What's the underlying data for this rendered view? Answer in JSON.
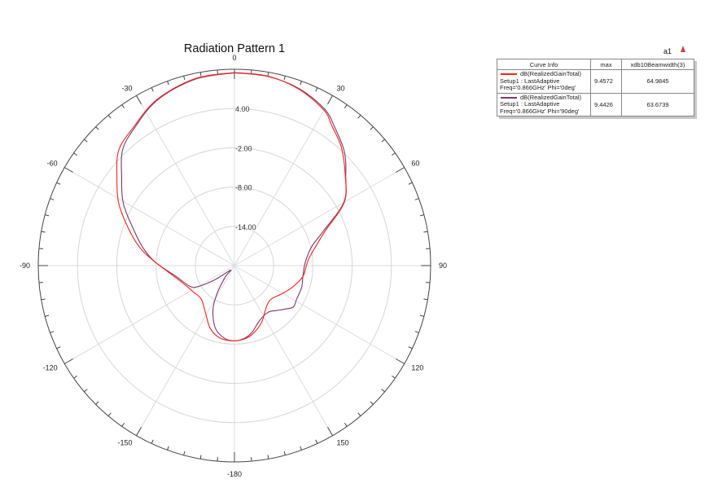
{
  "chart": {
    "title": "Radiation Pattern 1",
    "marker_name": "a1",
    "marker_icon": "marker-triangle-icon"
  },
  "legend": {
    "headers": [
      "Curve Info",
      "max",
      "xdb10Beamwidth(3)"
    ],
    "rows": [
      {
        "color": "#ff2020",
        "line1": "dB(RealizedGainTotal)",
        "line2": "Setup1 : LastAdaptive",
        "line3": "Freq='0.866GHz' Phi='0deg'",
        "max": "9.4572",
        "beamwidth": "64.9845"
      },
      {
        "color": "#7a3a6a",
        "line1": "dB(RealizedGainTotal)",
        "line2": "Setup1 : LastAdaptive",
        "line3": "Freq='0.866GHz' Phi='90deg'",
        "max": "9.4426",
        "beamwidth": "63.6739"
      }
    ]
  },
  "chart_data": {
    "type": "polar-line",
    "title": "Radiation Pattern 1",
    "r_axis": {
      "min": -20,
      "max": 10,
      "unit": "dB",
      "ring_labels": [
        "4.00",
        "-2.00",
        "-8.00",
        "-14.00"
      ],
      "ring_values": [
        4,
        -2,
        -8,
        -14
      ]
    },
    "theta_axis": {
      "labels": [
        "0",
        "30",
        "60",
        "90",
        "120",
        "150",
        "-180",
        "-150",
        "-120",
        "-90",
        "-60",
        "-30"
      ],
      "label_angles": [
        0,
        30,
        60,
        90,
        120,
        150,
        180,
        -150,
        -120,
        -90,
        -60,
        -30
      ],
      "major_step": 30,
      "minor_step": 5,
      "direction": "clockwise",
      "zero": "top"
    },
    "legend_position": "top-right",
    "series": [
      {
        "name": "dB(RealizedGainTotal) Setup1 : LastAdaptive Freq='0.866GHz' Phi='0deg'",
        "color": "#ff2020",
        "max": 9.4572,
        "beamwidth": 64.9845,
        "points": [
          [
            0,
            9.5
          ],
          [
            10,
            9.4
          ],
          [
            20,
            8.7
          ],
          [
            30,
            7.4
          ],
          [
            35,
            6.0
          ],
          [
            42,
            4.4
          ],
          [
            51,
            1.8
          ],
          [
            60,
            -0.6
          ],
          [
            69,
            -5.1
          ],
          [
            74,
            -6.6
          ],
          [
            84,
            -8.5
          ],
          [
            90,
            -9.0
          ],
          [
            99,
            -9.4
          ],
          [
            110,
            -10.5
          ],
          [
            120,
            -11.5
          ],
          [
            132,
            -12.4
          ],
          [
            140,
            -12.2
          ],
          [
            147,
            -11.5
          ],
          [
            155,
            -10.3
          ],
          [
            165,
            -9.2
          ],
          [
            172,
            -8.7
          ],
          [
            180,
            -8.5
          ],
          [
            -169,
            -8.7
          ],
          [
            -159,
            -9.7
          ],
          [
            -148,
            -11.6
          ],
          [
            -135,
            -12.8
          ],
          [
            -122,
            -12.5
          ],
          [
            -114,
            -12.1
          ],
          [
            -102,
            -10.9
          ],
          [
            -88,
            -8.0
          ],
          [
            -80,
            -5.5
          ],
          [
            -72,
            -3.2
          ],
          [
            -62,
            0.0
          ],
          [
            -53,
            2.5
          ],
          [
            -45,
            5.0
          ],
          [
            -36,
            6.2
          ],
          [
            -25,
            8.0
          ],
          [
            -12,
            9.2
          ],
          [
            0,
            9.5
          ]
        ]
      },
      {
        "name": "dB(RealizedGainTotal) Setup1 : LastAdaptive Freq='0.866GHz' Phi='90deg'",
        "color": "#7a3a6a",
        "max": 9.4426,
        "beamwidth": 63.6739,
        "points": [
          [
            0,
            9.45
          ],
          [
            10,
            9.35
          ],
          [
            20,
            8.8
          ],
          [
            30,
            7.6
          ],
          [
            36,
            6.1
          ],
          [
            44,
            4.2
          ],
          [
            51,
            1.9
          ],
          [
            60,
            -0.7
          ],
          [
            69,
            -5.5
          ],
          [
            76,
            -7.8
          ],
          [
            84,
            -8.9
          ],
          [
            90,
            -9.3
          ],
          [
            99,
            -9.4
          ],
          [
            108,
            -9.2
          ],
          [
            118,
            -9.2
          ],
          [
            125,
            -9.0
          ],
          [
            130,
            -9.7
          ],
          [
            137,
            -10.6
          ],
          [
            144,
            -11.2
          ],
          [
            155,
            -10.8
          ],
          [
            165,
            -9.5
          ],
          [
            172,
            -8.8
          ],
          [
            180,
            -8.5
          ],
          [
            -172,
            -8.8
          ],
          [
            -163,
            -10.0
          ],
          [
            -154,
            -12.5
          ],
          [
            -148,
            -15.0
          ],
          [
            -141,
            -17.8
          ],
          [
            -140,
            -19.1
          ],
          [
            -126,
            -16.4
          ],
          [
            -120,
            -13.6
          ],
          [
            -115,
            -12.5
          ],
          [
            -101,
            -11.0
          ],
          [
            -88,
            -8.0
          ],
          [
            -80,
            -6.0
          ],
          [
            -71,
            -3.8
          ],
          [
            -61,
            -0.6
          ],
          [
            -52,
            1.9
          ],
          [
            -44,
            4.6
          ],
          [
            -36,
            6.0
          ],
          [
            -25,
            7.9
          ],
          [
            -12,
            9.1
          ],
          [
            0,
            9.45
          ]
        ]
      }
    ]
  }
}
